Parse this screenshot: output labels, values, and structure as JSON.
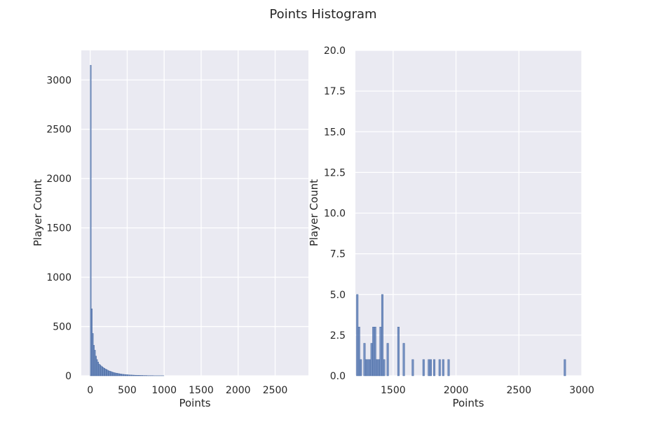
{
  "suptitle": "Points Histogram",
  "colors": {
    "background": "#eaeaf2",
    "grid": "#ffffff",
    "bar": "#4c72b0",
    "bar_edge": "#3d5f99",
    "text": "#262626"
  },
  "chart_data": [
    {
      "type": "histogram",
      "title": "",
      "xlabel": "Points",
      "ylabel": "Player Count",
      "xlim": [
        -120,
        2950
      ],
      "ylim": [
        0,
        3300
      ],
      "xticks": [
        0,
        500,
        1000,
        1500,
        2000,
        2500
      ],
      "xtick_labels": [
        "0",
        "500",
        "1000",
        "1500",
        "2000",
        "2500"
      ],
      "yticks": [
        0,
        500,
        1000,
        1500,
        2000,
        2500,
        3000
      ],
      "ytick_labels": [
        "0",
        "500",
        "1000",
        "1500",
        "2000",
        "2500",
        "3000"
      ],
      "grid": true,
      "bin_width": 14.25,
      "bins_start": 0,
      "counts": [
        3150,
        680,
        430,
        310,
        260,
        200,
        165,
        140,
        120,
        110,
        100,
        92,
        84,
        76,
        70,
        64,
        58,
        52,
        48,
        44,
        40,
        36,
        33,
        30,
        28,
        26,
        24,
        22,
        20,
        18,
        16,
        15,
        14,
        13,
        12,
        11,
        10,
        9,
        8,
        8,
        7,
        7,
        6,
        6,
        5,
        5,
        5,
        4,
        4,
        4,
        3,
        3,
        3,
        3,
        2,
        2,
        2,
        2,
        2,
        2,
        1,
        1,
        1,
        1,
        1,
        1,
        1,
        1,
        1,
        1
      ]
    },
    {
      "type": "histogram",
      "title": "",
      "xlabel": "Points",
      "ylabel": "Player Count",
      "xlim": [
        1200,
        3000
      ],
      "ylim": [
        0,
        20
      ],
      "xticks": [
        1500,
        2000,
        2500,
        3000
      ],
      "xtick_labels": [
        "1500",
        "2000",
        "2500",
        "3000"
      ],
      "yticks": [
        0,
        2.5,
        5,
        7.5,
        10,
        12.5,
        15,
        17.5,
        20
      ],
      "ytick_labels": [
        "0.0",
        "2.5",
        "5.0",
        "7.5",
        "10.0",
        "12.5",
        "15.0",
        "17.5",
        "20.0"
      ],
      "grid": true,
      "bin_width": 14.25,
      "bars": [
        {
          "x": 1208,
          "count": 5
        },
        {
          "x": 1222,
          "count": 3
        },
        {
          "x": 1236,
          "count": 1
        },
        {
          "x": 1265,
          "count": 2
        },
        {
          "x": 1279,
          "count": 1
        },
        {
          "x": 1293,
          "count": 1
        },
        {
          "x": 1307,
          "count": 1
        },
        {
          "x": 1322,
          "count": 2
        },
        {
          "x": 1336,
          "count": 3
        },
        {
          "x": 1350,
          "count": 3
        },
        {
          "x": 1364,
          "count": 1
        },
        {
          "x": 1379,
          "count": 1
        },
        {
          "x": 1393,
          "count": 3
        },
        {
          "x": 1407,
          "count": 5
        },
        {
          "x": 1421,
          "count": 1
        },
        {
          "x": 1450,
          "count": 2
        },
        {
          "x": 1535,
          "count": 3
        },
        {
          "x": 1578,
          "count": 2
        },
        {
          "x": 1649,
          "count": 1
        },
        {
          "x": 1735,
          "count": 1
        },
        {
          "x": 1777,
          "count": 1
        },
        {
          "x": 1792,
          "count": 1
        },
        {
          "x": 1820,
          "count": 1
        },
        {
          "x": 1863,
          "count": 1
        },
        {
          "x": 1891,
          "count": 1
        },
        {
          "x": 1934,
          "count": 1
        },
        {
          "x": 2858,
          "count": 1
        }
      ]
    }
  ]
}
